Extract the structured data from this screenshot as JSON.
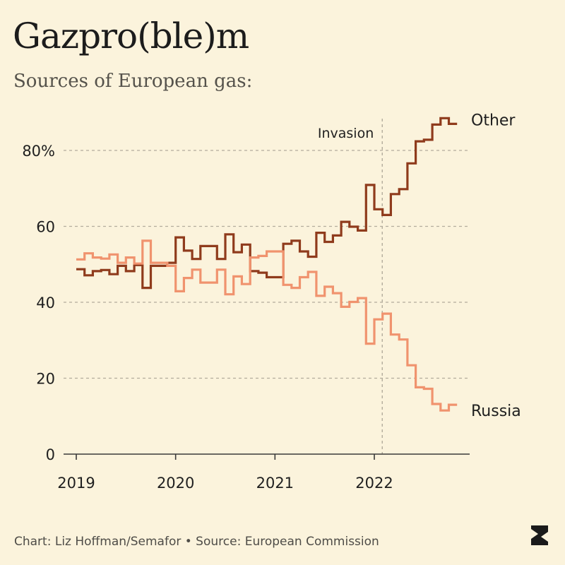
{
  "title": "Gazpro(ble)m",
  "subtitle": "Sources of European gas:",
  "footer": "Chart: Liz Hoffman/Semafor • Source: European Commission",
  "logo_alt": "S",
  "colors": {
    "background": "#fbf3dc",
    "other": "#8f3b1c",
    "russia": "#f0936e",
    "grid": "#b3ac9c",
    "axis": "#3a3a3a"
  },
  "chart_data": {
    "type": "line",
    "step": true,
    "title": "Gazpro(ble)m",
    "subtitle": "Sources of European gas:",
    "xlabel": "",
    "ylabel": "",
    "xlim": [
      2019,
      2022.9
    ],
    "ylim": [
      0,
      90
    ],
    "x_ticks": [
      {
        "value": 2019,
        "label": "2019"
      },
      {
        "value": 2020,
        "label": "2020"
      },
      {
        "value": 2021,
        "label": "2021"
      },
      {
        "value": 2022,
        "label": "2022"
      }
    ],
    "y_ticks": [
      {
        "value": 0,
        "label": "0"
      },
      {
        "value": 20,
        "label": "20"
      },
      {
        "value": 40,
        "label": "40"
      },
      {
        "value": 60,
        "label": "60"
      },
      {
        "value": 80,
        "label": "80%"
      }
    ],
    "grid": "horizontal dashed",
    "annotations": [
      {
        "type": "vline",
        "x": 2022.08,
        "label": "Invasion"
      }
    ],
    "x": [
      2019.0,
      2019.0833,
      2019.1667,
      2019.25,
      2019.3333,
      2019.4167,
      2019.5,
      2019.5833,
      2019.6667,
      2019.75,
      2019.8333,
      2019.9167,
      2020.0,
      2020.0833,
      2020.1667,
      2020.25,
      2020.3333,
      2020.4167,
      2020.5,
      2020.5833,
      2020.6667,
      2020.75,
      2020.8333,
      2020.9167,
      2021.0,
      2021.0833,
      2021.1667,
      2021.25,
      2021.3333,
      2021.4167,
      2021.5,
      2021.5833,
      2021.6667,
      2021.75,
      2021.8333,
      2021.9167,
      2022.0,
      2022.0833,
      2022.1667,
      2022.25,
      2022.3333,
      2022.4167,
      2022.5,
      2022.5833,
      2022.6667,
      2022.75
    ],
    "series": [
      {
        "name": "Other",
        "values": [
          48.7,
          47.1,
          48.2,
          48.5,
          47.4,
          49.6,
          48.2,
          49.8,
          43.8,
          49.6,
          49.6,
          50.4,
          57.1,
          53.6,
          51.4,
          54.8,
          54.8,
          51.4,
          57.9,
          53.2,
          55.2,
          48.2,
          47.8,
          46.6,
          46.6,
          55.4,
          56.2,
          53.4,
          52.0,
          58.3,
          55.9,
          57.6,
          61.2,
          59.9,
          58.9,
          70.9,
          64.5,
          63.0,
          68.5,
          69.8,
          76.6,
          82.4,
          82.8,
          86.8,
          88.5,
          87.0
        ]
      },
      {
        "name": "Russia",
        "values": [
          51.3,
          52.9,
          51.8,
          51.5,
          52.6,
          50.4,
          51.8,
          50.2,
          56.2,
          50.4,
          50.4,
          49.6,
          42.9,
          46.4,
          48.6,
          45.2,
          45.2,
          48.6,
          42.1,
          46.8,
          44.8,
          51.8,
          52.2,
          53.4,
          53.4,
          44.6,
          43.8,
          46.6,
          48.0,
          41.7,
          44.1,
          42.4,
          38.8,
          40.1,
          41.1,
          29.1,
          35.5,
          37.0,
          31.5,
          30.2,
          23.4,
          17.6,
          17.2,
          13.2,
          11.5,
          13.0
        ]
      }
    ]
  }
}
